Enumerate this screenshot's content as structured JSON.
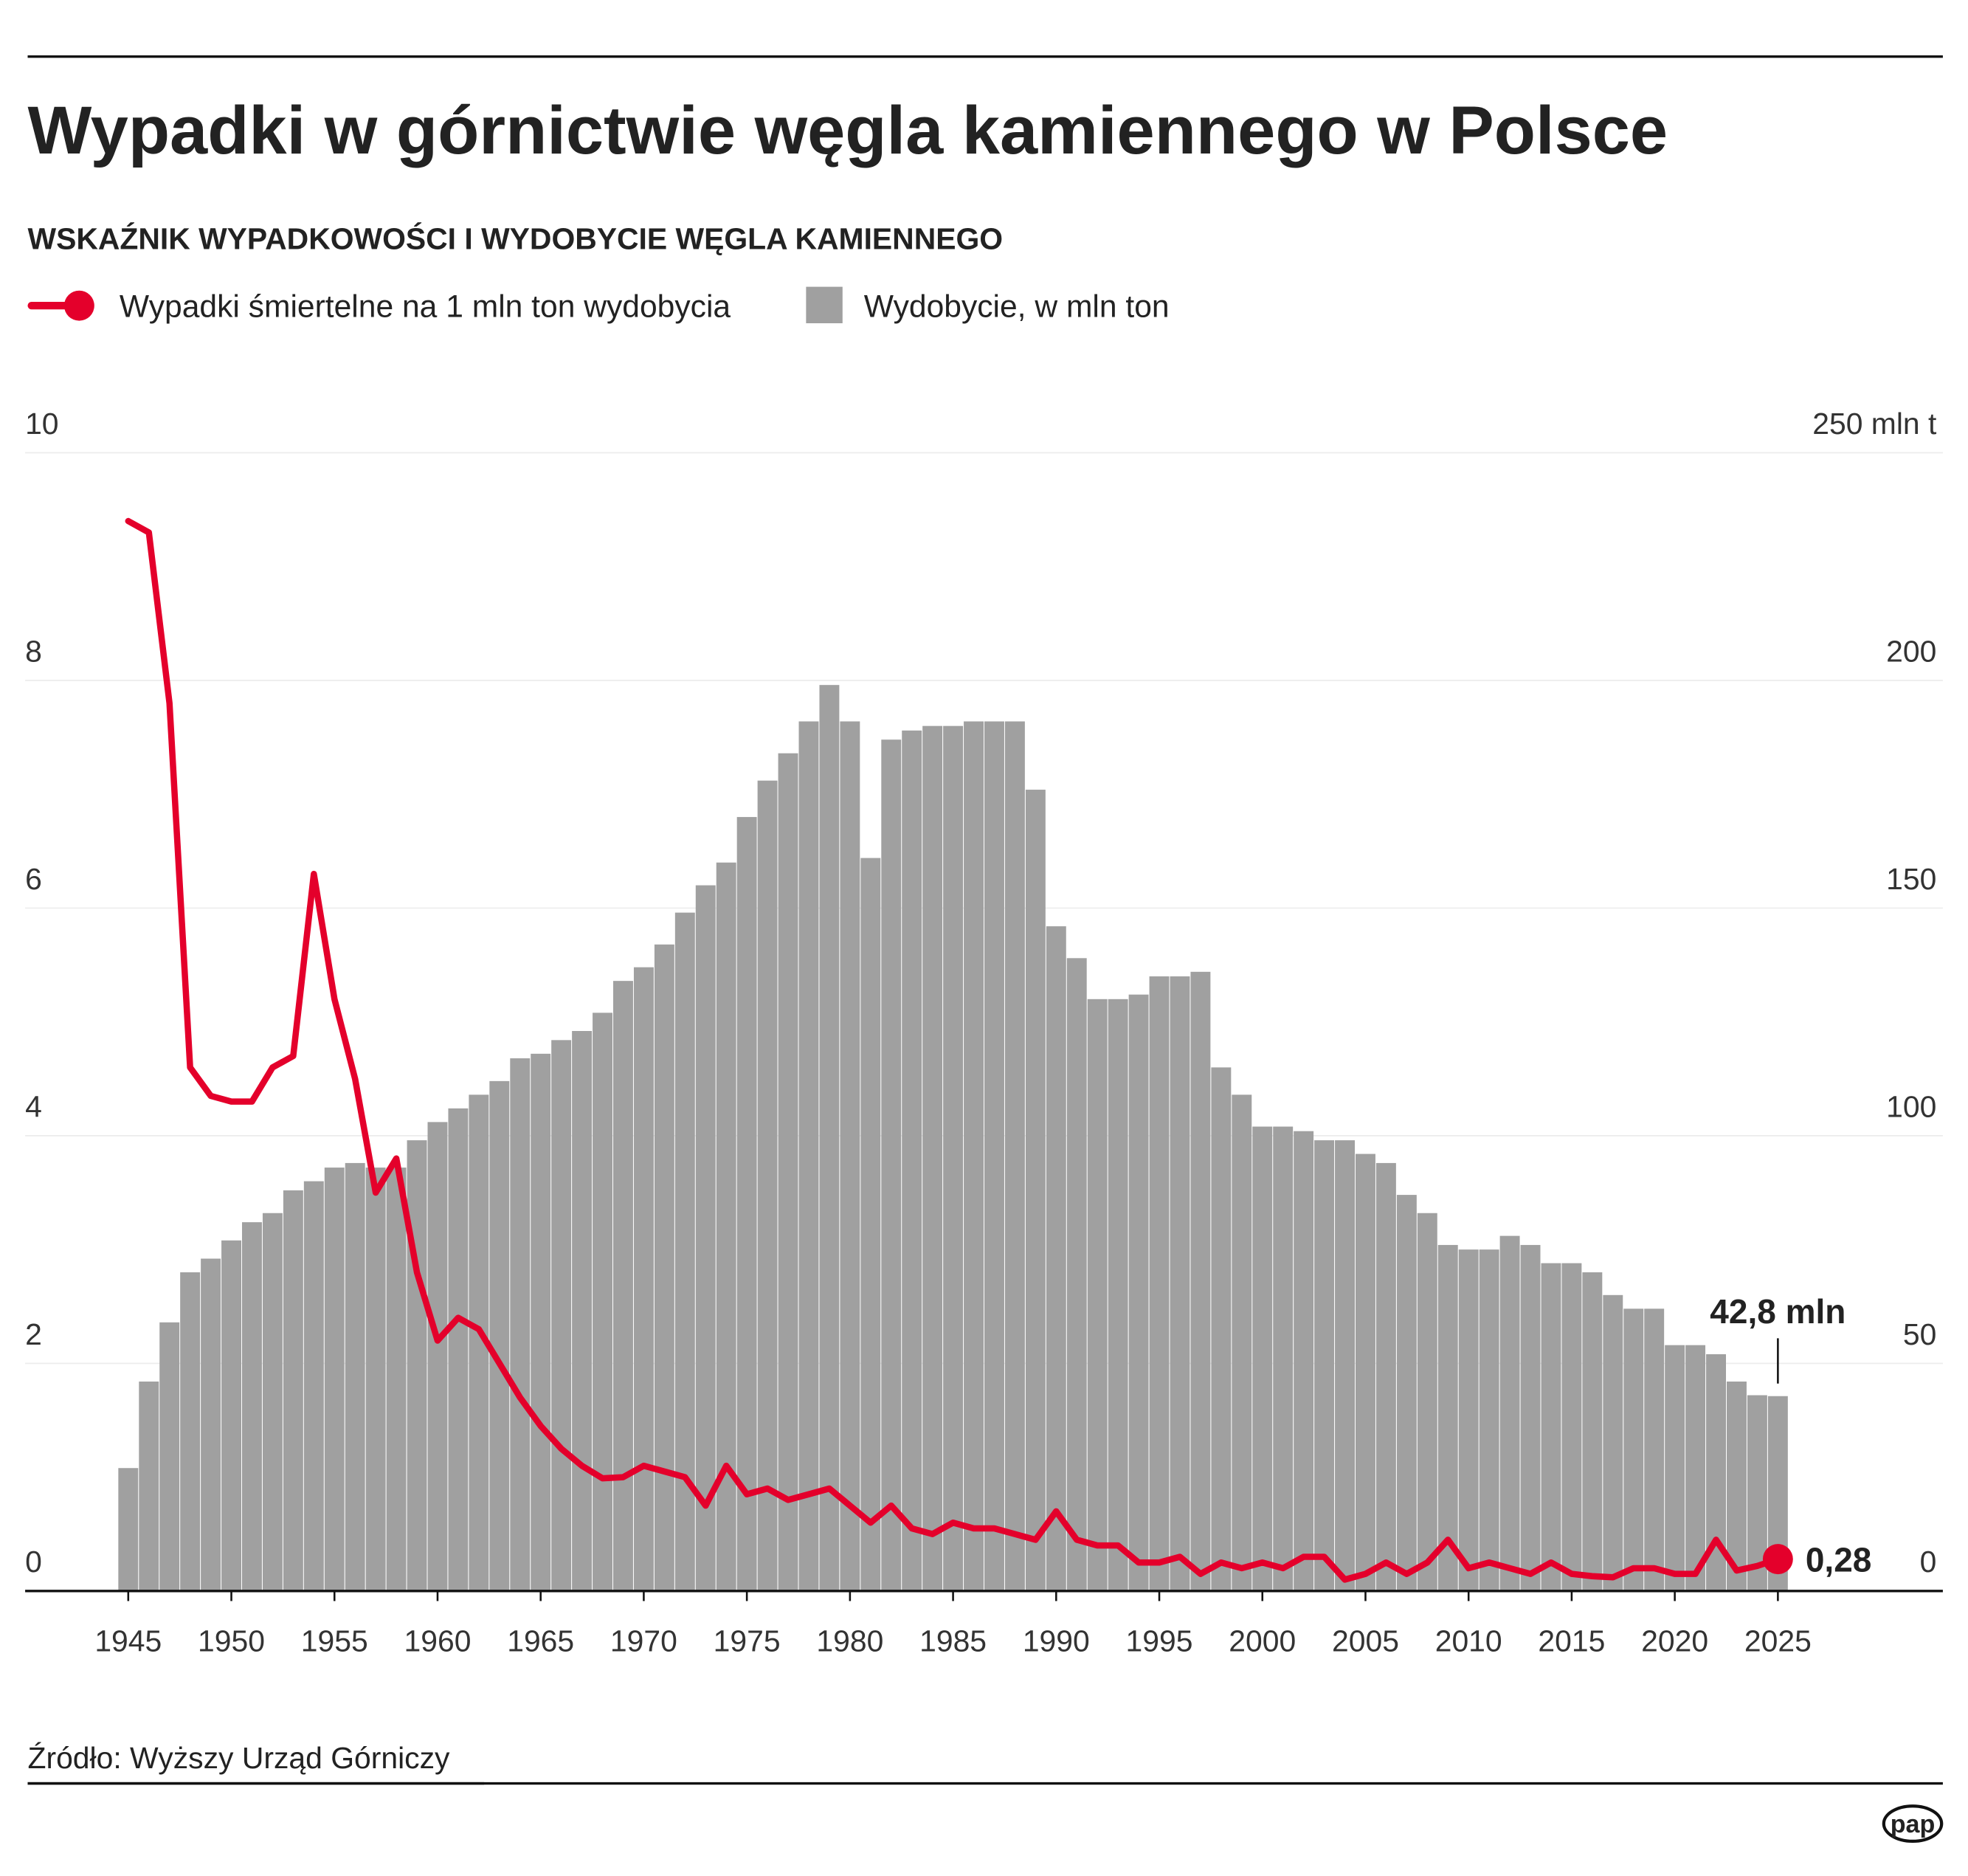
{
  "chart_data": {
    "type": "combo",
    "title": "Wypadki w górnictwie węgla kamiennego w Polsce",
    "subtitle": "WSKAŹNIK WYPADKOWOŚCI I WYDOBYCIE WĘGLA KAMIENNEGO",
    "source": "Źródło: Wyższy Urząd Górniczy",
    "logo": "pap",
    "x": [
      1945,
      1946,
      1947,
      1948,
      1949,
      1950,
      1951,
      1952,
      1953,
      1954,
      1955,
      1956,
      1957,
      1958,
      1959,
      1960,
      1961,
      1962,
      1963,
      1964,
      1965,
      1966,
      1967,
      1968,
      1969,
      1970,
      1971,
      1972,
      1973,
      1974,
      1975,
      1976,
      1977,
      1978,
      1979,
      1980,
      1981,
      1982,
      1983,
      1984,
      1985,
      1986,
      1987,
      1988,
      1989,
      1990,
      1991,
      1992,
      1993,
      1994,
      1995,
      1996,
      1997,
      1998,
      1999,
      2000,
      2001,
      2002,
      2003,
      2004,
      2005,
      2006,
      2007,
      2008,
      2009,
      2010,
      2011,
      2012,
      2013,
      2014,
      2015,
      2016,
      2017,
      2018,
      2019,
      2020,
      2021,
      2022,
      2023,
      2024,
      2025
    ],
    "xlim": [
      1940,
      2033
    ],
    "xticks": [
      1945,
      1950,
      1955,
      1960,
      1965,
      1970,
      1975,
      1980,
      1985,
      1990,
      1995,
      2000,
      2005,
      2010,
      2015,
      2020,
      2025
    ],
    "ylim": [
      0,
      10
    ],
    "yticks": [
      0,
      2,
      4,
      6,
      8,
      10
    ],
    "y2lim": [
      0,
      250
    ],
    "y2ticks": [
      0,
      50,
      100,
      150,
      200,
      {
        "value": 250,
        "label": "250 mln t"
      }
    ],
    "grid": true,
    "series": [
      {
        "name": "Wypadki śmiertelne na 1 mln ton wydobycia",
        "type": "line",
        "axis": "y",
        "color": "#e4002b",
        "values": [
          9.4,
          9.3,
          7.8,
          4.6,
          4.35,
          4.3,
          4.3,
          4.6,
          4.7,
          6.3,
          5.2,
          4.5,
          3.5,
          3.8,
          2.8,
          2.2,
          2.4,
          2.3,
          2.0,
          1.7,
          1.45,
          1.25,
          1.1,
          0.99,
          1.0,
          1.1,
          1.05,
          1.0,
          0.75,
          1.1,
          0.85,
          0.9,
          0.8,
          0.85,
          0.9,
          0.75,
          0.6,
          0.75,
          0.55,
          0.5,
          0.6,
          0.55,
          0.55,
          0.5,
          0.45,
          0.7,
          0.45,
          0.4,
          0.4,
          0.25,
          0.25,
          0.3,
          0.15,
          0.25,
          0.2,
          0.25,
          0.2,
          0.3,
          0.3,
          0.1,
          0.15,
          0.25,
          0.15,
          0.25,
          0.45,
          0.2,
          0.25,
          0.2,
          0.15,
          0.25,
          0.15,
          0.13,
          0.12,
          0.2,
          0.2,
          0.15,
          0.15,
          0.45,
          0.18,
          0.22,
          0.28
        ],
        "value_labels": [
          null,
          null,
          null,
          null,
          null,
          null,
          null,
          null,
          null,
          null,
          null,
          null,
          null,
          null,
          null,
          null,
          null,
          null,
          null,
          null,
          null,
          null,
          null,
          null,
          null,
          null,
          null,
          null,
          null,
          null,
          null,
          null,
          null,
          null,
          null,
          null,
          null,
          null,
          null,
          null,
          null,
          null,
          null,
          null,
          null,
          null,
          null,
          null,
          null,
          null,
          null,
          null,
          null,
          null,
          null,
          null,
          null,
          null,
          null,
          null,
          null,
          null,
          null,
          null,
          null,
          null,
          null,
          null,
          null,
          null,
          null,
          null,
          null,
          null,
          null,
          null,
          null,
          null,
          null,
          null,
          "0,28"
        ]
      },
      {
        "name": "Wydobycie, w mln ton",
        "type": "bar",
        "axis": "y2",
        "color": "#a0a0a0",
        "values": [
          27,
          46,
          59,
          70,
          73,
          77,
          81,
          83,
          88,
          90,
          93,
          94,
          93,
          93,
          99,
          103,
          106,
          109,
          112,
          117,
          118,
          121,
          123,
          127,
          134,
          137,
          142,
          149,
          155,
          160,
          170,
          178,
          184,
          191,
          199,
          191,
          161,
          187,
          189,
          190,
          190,
          191,
          191,
          191,
          176,
          146,
          139,
          130,
          130,
          131,
          135,
          135,
          136,
          115,
          109,
          102,
          102,
          101,
          99,
          99,
          96,
          94,
          87,
          83,
          76,
          75,
          75,
          78,
          76,
          72,
          72,
          70,
          65,
          62,
          62,
          54,
          54,
          52,
          46,
          43,
          42.8
        ],
        "value_labels": [
          null,
          null,
          null,
          null,
          null,
          null,
          null,
          null,
          null,
          null,
          null,
          null,
          null,
          null,
          null,
          null,
          null,
          null,
          null,
          null,
          null,
          null,
          null,
          null,
          null,
          null,
          null,
          null,
          null,
          null,
          null,
          null,
          null,
          null,
          null,
          null,
          null,
          null,
          null,
          null,
          null,
          null,
          null,
          null,
          null,
          null,
          null,
          null,
          null,
          null,
          null,
          null,
          null,
          null,
          null,
          null,
          null,
          null,
          null,
          null,
          null,
          null,
          null,
          null,
          null,
          null,
          null,
          null,
          null,
          null,
          null,
          null,
          null,
          null,
          null,
          null,
          null,
          null,
          null,
          null,
          "42,8 mln"
        ]
      }
    ]
  }
}
